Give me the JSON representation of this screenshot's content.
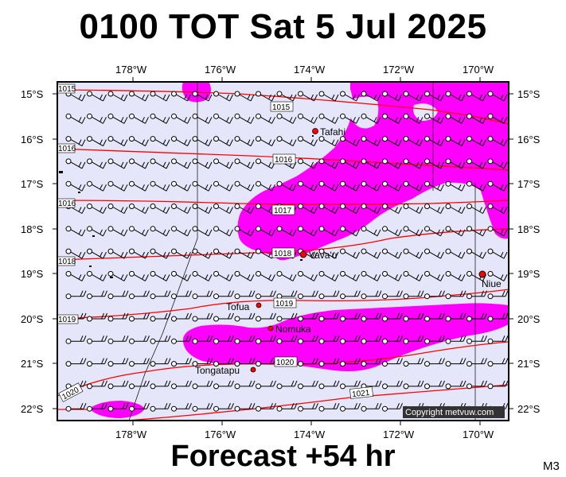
{
  "title": "0100 TOT Sat 5 Jul 2025",
  "footer": "Forecast +54 hr",
  "code_label": "M3",
  "copyright": "Copyright metvuw.com",
  "colors": {
    "background": "#e6e6fa",
    "precip": "#ff00ff",
    "isobar": "#ff0000",
    "place_dot": "#ff0000"
  },
  "x_ticks": [
    "178°W",
    "176°W",
    "174°W",
    "172°W",
    "170°W"
  ],
  "y_ticks": [
    "15°S",
    "16°S",
    "17°S",
    "18°S",
    "19°S",
    "20°S",
    "21°S",
    "22°S"
  ],
  "isobar_labels": [
    "1015",
    "1015",
    "1016",
    "1016",
    "1016",
    "1017",
    "1018",
    "1018",
    "1019",
    "1019",
    "1020",
    "1020",
    "1021"
  ],
  "places": [
    "Tafahi",
    "Vava'u",
    "Niue",
    "Tofua",
    "Nomuka",
    "Tongatapu"
  ],
  "wind_barb_symbol": "wind-barb"
}
